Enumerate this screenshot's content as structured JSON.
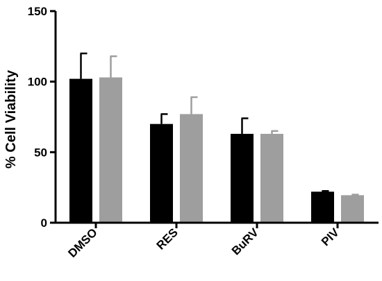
{
  "chart_data": {
    "type": "bar",
    "title": "",
    "xlabel": "",
    "ylabel": "% Cell Viability",
    "ylim": [
      0,
      150
    ],
    "yticks": [
      0,
      50,
      100,
      150
    ],
    "grid": false,
    "legend": "none",
    "categories": [
      "DMSO",
      "RES",
      "BuRV",
      "PIV"
    ],
    "series": [
      {
        "color": "#000000",
        "values": [
          102,
          70,
          63,
          22
        ],
        "errors": [
          18,
          7,
          11,
          0.5
        ]
      },
      {
        "color": "#9e9e9e",
        "values": [
          103,
          77,
          63,
          19.5
        ],
        "errors": [
          15,
          12,
          2,
          0.4
        ]
      }
    ]
  }
}
